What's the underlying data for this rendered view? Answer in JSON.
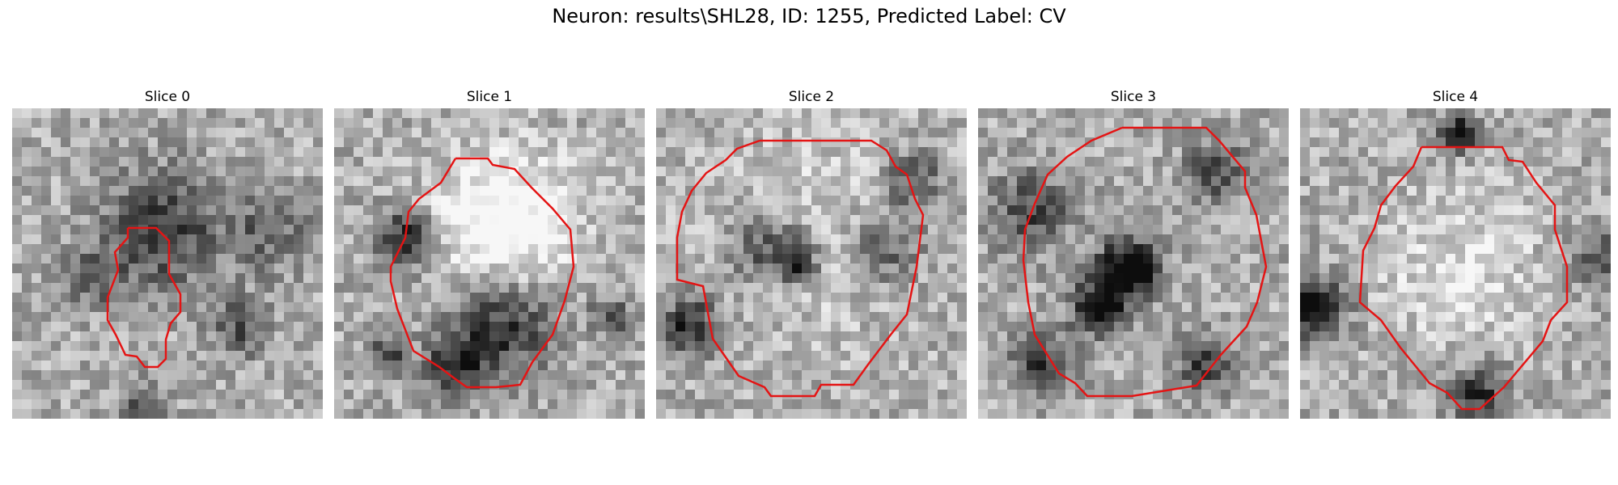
{
  "figure": {
    "title": "Neuron: results\\SHL28, ID: 1255, Predicted Label: CV"
  },
  "slices": [
    {
      "label": "Slice 0"
    },
    {
      "label": "Slice 1"
    },
    {
      "label": "Slice 2"
    },
    {
      "label": "Slice 3"
    },
    {
      "label": "Slice 4"
    }
  ],
  "colors": {
    "contour": "#e41414",
    "background": "#ffffff"
  }
}
